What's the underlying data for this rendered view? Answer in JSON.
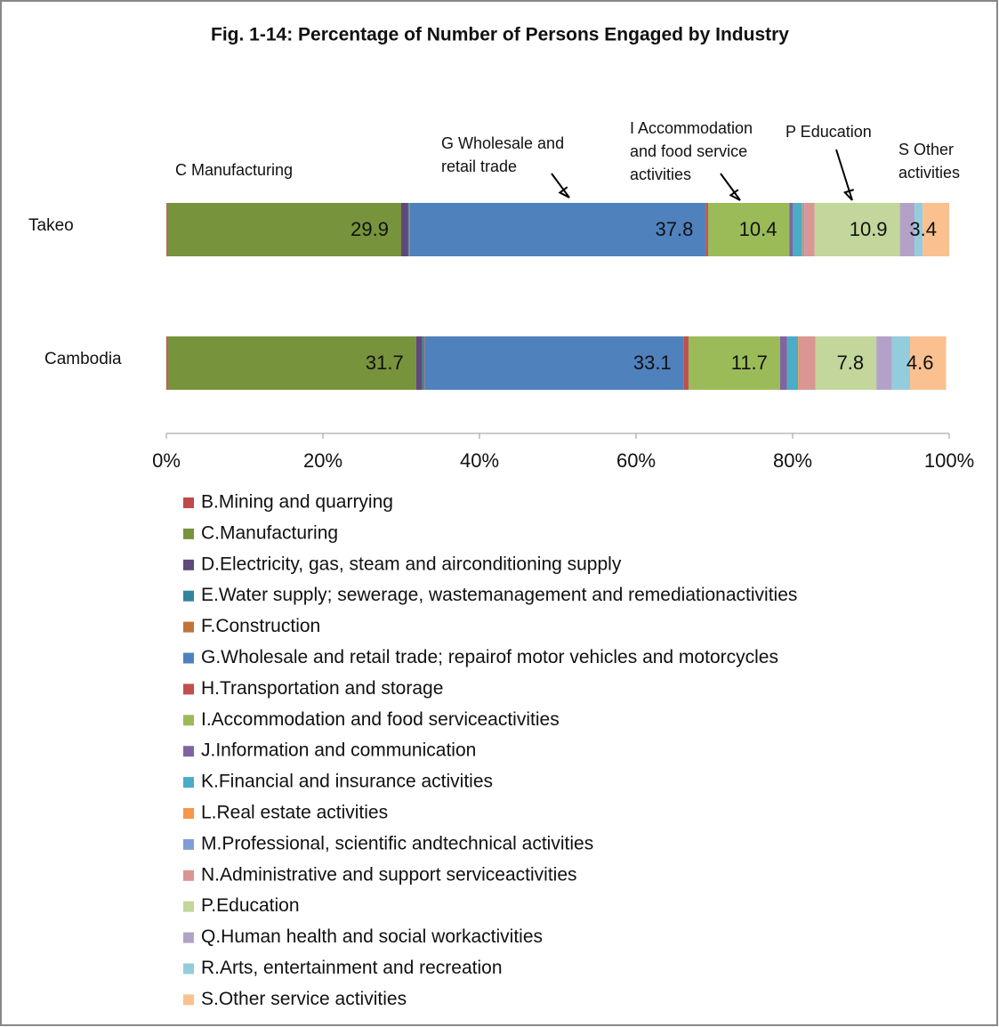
{
  "chart_data": {
    "type": "stacked_barh",
    "title": "Fig. 1-14: Percentage of Number of Persons Engaged by Industry",
    "categories": [
      "Takeo",
      "Cambodia"
    ],
    "xlim": [
      0,
      100
    ],
    "xticks": [
      {
        "value": 0,
        "label": "0%"
      },
      {
        "value": 20,
        "label": "20%"
      },
      {
        "value": 40,
        "label": "40%"
      },
      {
        "value": 60,
        "label": "60%"
      },
      {
        "value": 80,
        "label": "80%"
      },
      {
        "value": 100,
        "label": "100%"
      }
    ],
    "legend": "bottom",
    "series": [
      {
        "name": "B.Mining and quarrying",
        "color": "#be4b48",
        "values": [
          0.1,
          0.2
        ]
      },
      {
        "name": "C.Manufacturing",
        "color": "#77933c",
        "values": [
          29.9,
          31.7
        ],
        "data_labels": true
      },
      {
        "name": "D.Electricity, gas, steam and airconditioning supply",
        "color": "#5f497a",
        "values": [
          0.9,
          0.8
        ]
      },
      {
        "name": "E.Water supply; sewerage, wastemanagement and remediationactivities",
        "color": "#31859c",
        "values": [
          0.1,
          0.2
        ]
      },
      {
        "name": "F.Construction",
        "color": "#c0743a",
        "values": [
          0.1,
          0.1
        ]
      },
      {
        "name": "G.Wholesale and retail trade; repairof motor vehicles and motorcycles",
        "color": "#4f81bd",
        "values": [
          37.8,
          33.1
        ],
        "data_labels": true
      },
      {
        "name": "H.Transportation and storage",
        "color": "#c0504d",
        "values": [
          0.3,
          0.6
        ]
      },
      {
        "name": "I.Accommodation and food serviceactivities",
        "color": "#9bbb59",
        "values": [
          10.4,
          11.7
        ],
        "data_labels": true
      },
      {
        "name": "J.Information and communication",
        "color": "#8064a2",
        "values": [
          0.4,
          0.9
        ]
      },
      {
        "name": "K.Financial and insurance activities",
        "color": "#4bacc6",
        "values": [
          1.2,
          1.4
        ]
      },
      {
        "name": "L.Real estate activities",
        "color": "#f79646",
        "values": [
          0.1,
          0.1
        ]
      },
      {
        "name": "M.Professional, scientific andtechnical activities",
        "color": "#7f9fd4",
        "values": [
          0.2,
          0.1
        ]
      },
      {
        "name": "N.Administrative and support serviceactivities",
        "color": "#d99694",
        "values": [
          1.3,
          2.0
        ]
      },
      {
        "name": "P.Education",
        "color": "#c3d69b",
        "values": [
          10.9,
          7.8
        ],
        "data_labels": true
      },
      {
        "name": "Q.Human health and social workactivities",
        "color": "#b3a2c7",
        "values": [
          1.9,
          2.0
        ]
      },
      {
        "name": "R.Arts, entertainment and recreation",
        "color": "#93cddd",
        "values": [
          1.0,
          2.3
        ]
      },
      {
        "name": "S.Other service activities",
        "color": "#fac090",
        "values": [
          3.4,
          4.6
        ],
        "data_labels": true
      }
    ],
    "annotations": [
      {
        "lines": [
          "C Manufacturing"
        ]
      },
      {
        "lines": [
          "G Wholesale and",
          "retail trade"
        ]
      },
      {
        "lines": [
          "I Accommodation",
          "and food service",
          "activities"
        ]
      },
      {
        "lines": [
          "P Education"
        ]
      },
      {
        "lines": [
          "S Other",
          "activities"
        ]
      }
    ]
  }
}
